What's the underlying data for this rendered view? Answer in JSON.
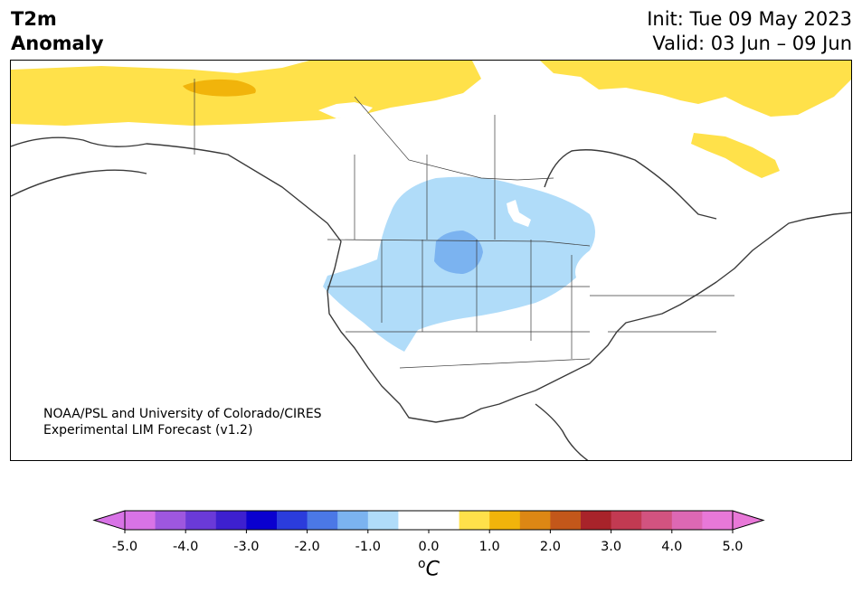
{
  "header": {
    "var_line1": "T2m",
    "var_line2": "Anomaly",
    "init": "Init: Tue 09 May 2023",
    "valid": "Valid: 03 Jun – 09 Jun"
  },
  "credit": {
    "line1": "NOAA/PSL and University of Colorado/CIRES",
    "line2": "Experimental LIM Forecast (v1.2)"
  },
  "colorbar": {
    "ticks": [
      "-5.0",
      "-4.0",
      "-3.0",
      "-2.0",
      "-1.0",
      "0.0",
      "1.0",
      "2.0",
      "3.0",
      "4.0",
      "5.0"
    ],
    "units_sup": "o",
    "units": "C",
    "under_color": "#d873e6",
    "over_color": "#e878d8",
    "colors": [
      "#d873e6",
      "#9e57df",
      "#6a3ad8",
      "#3d20cf",
      "#0a00cf",
      "#2b3cdc",
      "#4b78e6",
      "#7bb3f0",
      "#b0dcf9",
      "#ffffff",
      "#ffffff",
      "#ffe14a",
      "#f1b40b",
      "#dd8714",
      "#c3571a",
      "#a8232a",
      "#c23a52",
      "#d25380",
      "#dd68b4",
      "#e878d8"
    ]
  },
  "anomaly_regions": [
    {
      "label": "warm",
      "color": "#ffe14a"
    },
    {
      "label": "warm-strong",
      "color": "#f1b40b"
    },
    {
      "label": "cool",
      "color": "#b0dcf9"
    },
    {
      "label": "cool-strong",
      "color": "#7bb3f0"
    }
  ]
}
